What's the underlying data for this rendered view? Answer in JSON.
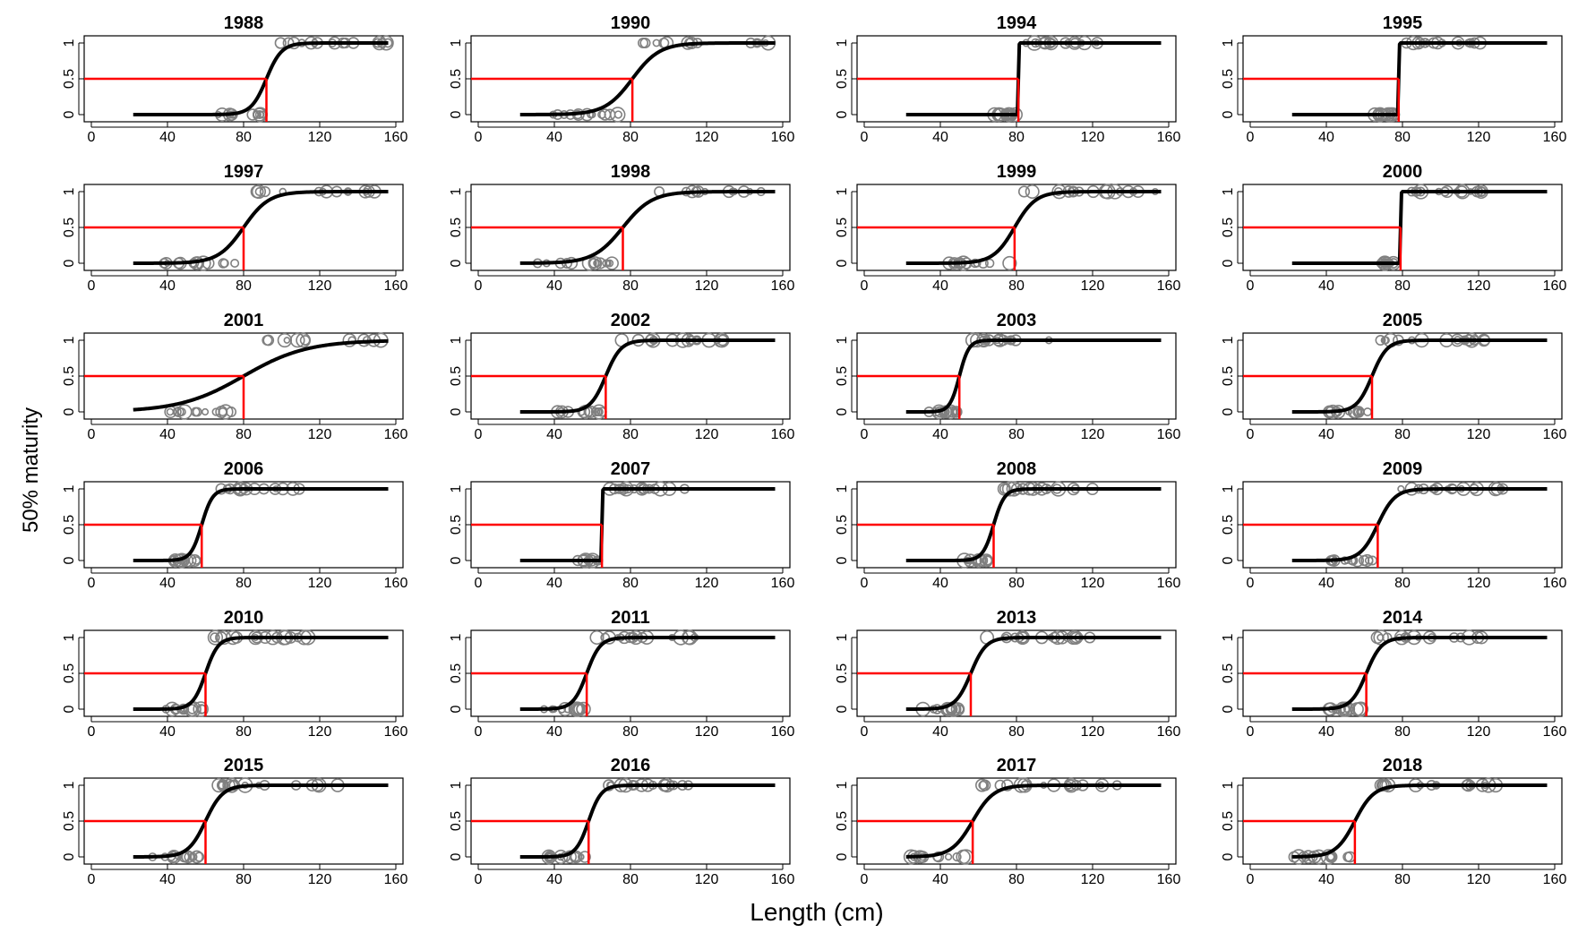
{
  "figure": {
    "ylabel": "50% maturity",
    "xlabel": "Length (cm)"
  },
  "colors": {
    "curve": "#000000",
    "l50_line": "#ff0000",
    "observations": "#808080"
  },
  "axes": {
    "xlim": [
      0,
      160
    ],
    "ylim": [
      0,
      1
    ],
    "xticks": [
      0,
      40,
      80,
      120,
      160
    ],
    "yticks": [
      0,
      0.5,
      1
    ],
    "xtick_labels": [
      "0",
      "40",
      "80",
      "120",
      "160"
    ],
    "ytick_labels": [
      "0",
      "0.5",
      "1"
    ]
  },
  "chart_data": {
    "type": "scatter",
    "description_of_series": "logistic maturity ogive per year with L50 marker",
    "curve_x_range": [
      22,
      156
    ],
    "panels": [
      {
        "year": "1988",
        "L50": 92,
        "k": 0.25
      },
      {
        "year": "1990",
        "L50": 81,
        "k": 0.14
      },
      {
        "year": "1994",
        "L50": 81,
        "k": 8
      },
      {
        "year": "1995",
        "L50": 78,
        "k": 8
      },
      {
        "year": "1997",
        "L50": 80,
        "k": 0.15
      },
      {
        "year": "1998",
        "L50": 76,
        "k": 0.13
      },
      {
        "year": "1999",
        "L50": 79,
        "k": 0.18
      },
      {
        "year": "2000",
        "L50": 79,
        "k": 8
      },
      {
        "year": "2001",
        "L50": 80,
        "k": 0.06
      },
      {
        "year": "2002",
        "L50": 67,
        "k": 0.25
      },
      {
        "year": "2003",
        "L50": 50,
        "k": 0.4
      },
      {
        "year": "2005",
        "L50": 64,
        "k": 0.25
      },
      {
        "year": "2006",
        "L50": 58,
        "k": 0.35
      },
      {
        "year": "2007",
        "L50": 65,
        "k": 8
      },
      {
        "year": "2008",
        "L50": 68,
        "k": 0.35
      },
      {
        "year": "2009",
        "L50": 67,
        "k": 0.22
      },
      {
        "year": "2010",
        "L50": 60,
        "k": 0.3
      },
      {
        "year": "2011",
        "L50": 57,
        "k": 0.28
      },
      {
        "year": "2013",
        "L50": 56,
        "k": 0.25
      },
      {
        "year": "2014",
        "L50": 61,
        "k": 0.25
      },
      {
        "year": "2015",
        "L50": 60,
        "k": 0.22
      },
      {
        "year": "2016",
        "L50": 58,
        "k": 0.3
      },
      {
        "year": "2017",
        "L50": 57,
        "k": 0.18
      },
      {
        "year": "2018",
        "L50": 55,
        "k": 0.2
      }
    ]
  }
}
